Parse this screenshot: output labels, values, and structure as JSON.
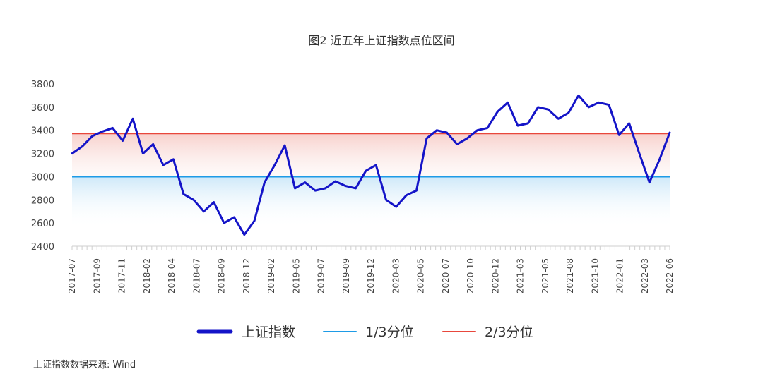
{
  "chart_data": {
    "type": "line",
    "title": "图2 近五年上证指数点位区间",
    "ylim": [
      2400,
      3800
    ],
    "yticks": [
      "2400",
      "2600",
      "2800",
      "3000",
      "3200",
      "3400",
      "3600",
      "3800"
    ],
    "x_tick_labels": [
      "2017-07",
      "2017-09",
      "2017-11",
      "2018-02",
      "2018-04",
      "2018-07",
      "2018-09",
      "2018-12",
      "2019-02",
      "2019-05",
      "2019-07",
      "2019-09",
      "2019-12",
      "2020-03",
      "2020-05",
      "2020-07",
      "2020-10",
      "2020-12",
      "2021-03",
      "2021-05",
      "2021-08",
      "2021-10",
      "2022-01",
      "2022-03",
      "2022-06"
    ],
    "x": [
      "2017-07",
      "2017-08",
      "2017-09",
      "2017-10",
      "2017-11",
      "2017-12",
      "2018-01",
      "2018-02",
      "2018-03",
      "2018-04",
      "2018-05",
      "2018-06",
      "2018-07",
      "2018-08",
      "2018-09",
      "2018-10",
      "2018-11",
      "2018-12",
      "2019-01",
      "2019-02",
      "2019-03",
      "2019-04",
      "2019-05",
      "2019-06",
      "2019-07",
      "2019-08",
      "2019-09",
      "2019-10",
      "2019-11",
      "2019-12",
      "2020-01",
      "2020-02",
      "2020-03",
      "2020-04",
      "2020-05",
      "2020-06",
      "2020-07",
      "2020-08",
      "2020-09",
      "2020-10",
      "2020-11",
      "2020-12",
      "2021-01",
      "2021-02",
      "2021-03",
      "2021-04",
      "2021-05",
      "2021-06",
      "2021-07",
      "2021-08",
      "2021-09",
      "2021-10",
      "2021-11",
      "2021-12",
      "2022-01",
      "2022-02",
      "2022-03",
      "2022-04",
      "2022-05",
      "2022-06"
    ],
    "series": [
      {
        "name": "上证指数",
        "color": "#1414c8",
        "values": [
          3200,
          3260,
          3350,
          3390,
          3420,
          3310,
          3500,
          3200,
          3280,
          3100,
          3150,
          2850,
          2800,
          2700,
          2780,
          2600,
          2650,
          2500,
          2620,
          2950,
          3100,
          3270,
          2900,
          2950,
          2880,
          2900,
          2960,
          2920,
          2900,
          3050,
          3100,
          2800,
          2740,
          2840,
          2880,
          3330,
          3400,
          3380,
          3280,
          3330,
          3400,
          3420,
          3560,
          3640,
          3440,
          3460,
          3600,
          3580,
          3500,
          3550,
          3700,
          3600,
          3640,
          3620,
          3360,
          3460,
          3200,
          2950,
          3150,
          3380
        ]
      },
      {
        "name": "1/3分位",
        "color": "#1e9be6",
        "level": 2998
      },
      {
        "name": "2/3分位",
        "color": "#e8473c",
        "level": 3371
      }
    ],
    "legend": "bottom",
    "grid": false
  },
  "source_note": "上证指数数据来源: Wind"
}
